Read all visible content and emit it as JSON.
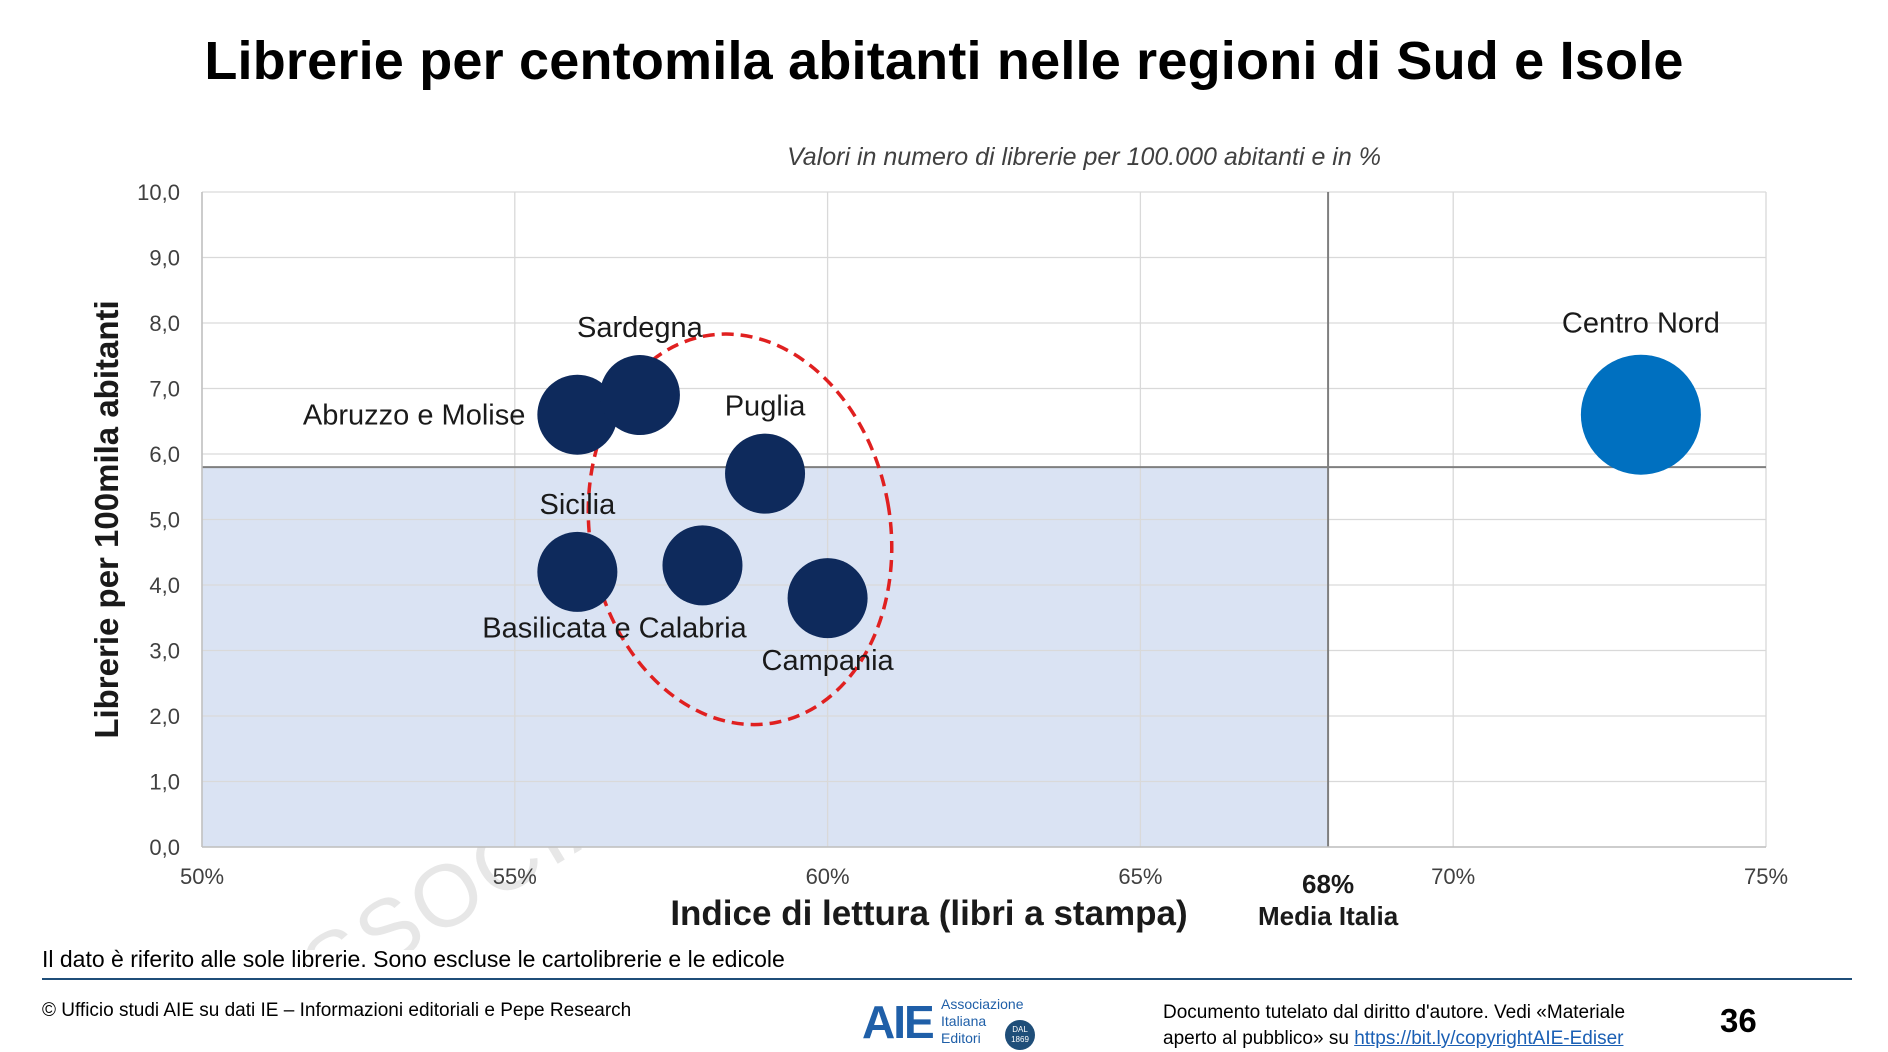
{
  "title": "Librerie per centomila abitanti nelle regioni di Sud e Isole",
  "note": "Il dato è riferito alle sole librerie. Sono escluse le cartolibrerie e le edicole",
  "footer": {
    "source": "© Ufficio studi AIE su dati IE – Informazioni editoriali e Pepe Research",
    "logo": {
      "mark": "AIE",
      "line1": "Associazione",
      "line2": "Italiana",
      "line3": "Editori",
      "seal_top": "DAL",
      "seal_bottom": "1869"
    },
    "copyright_line1": "Documento tutelato dal diritto d'autore. Vedi «Materiale",
    "copyright_line2_prefix": "aperto al pubblico» su ",
    "copyright_link": "https://bit.ly/copyrightAIE-Ediser",
    "page_number": "36"
  },
  "watermark": "ASSOCIAZIONE ITALIANA EDITORI",
  "chart_data": {
    "type": "scatter",
    "subtitle": "Valori in numero di librerie per 100.000 abitanti e in %",
    "xlabel": "Indice di lettura (libri a stampa)",
    "ylabel": "Librerie per 100mila abitanti",
    "xlim": [
      50,
      75
    ],
    "ylim": [
      0,
      10
    ],
    "x_ticks": [
      {
        "value": 50,
        "label": "50%"
      },
      {
        "value": 55,
        "label": "55%"
      },
      {
        "value": 60,
        "label": "60%"
      },
      {
        "value": 65,
        "label": "65%"
      },
      {
        "value": 70,
        "label": "70%"
      },
      {
        "value": 75,
        "label": "75%"
      }
    ],
    "y_ticks": [
      {
        "value": 0,
        "label": "0,0"
      },
      {
        "value": 1,
        "label": "1,0"
      },
      {
        "value": 2,
        "label": "2,0"
      },
      {
        "value": 3,
        "label": "3,0"
      },
      {
        "value": 4,
        "label": "4,0"
      },
      {
        "value": 5,
        "label": "5,0"
      },
      {
        "value": 6,
        "label": "6,0"
      },
      {
        "value": 7,
        "label": "7,0"
      },
      {
        "value": 8,
        "label": "8,0"
      },
      {
        "value": 9,
        "label": "9,0"
      },
      {
        "value": 10,
        "label": "10,0"
      }
    ],
    "grid": true,
    "reference_x": {
      "value": 68,
      "label_value": "68%",
      "label_text": "Media Italia"
    },
    "reference_y": {
      "value": 5.8
    },
    "shaded_quadrant": {
      "x_max": 68,
      "y_max": 5.8,
      "color": "#dae3f3"
    },
    "points": [
      {
        "name": "Abruzzo e Molise",
        "x": 56,
        "y": 6.6,
        "color": "#0e2a5c",
        "label_pos": "left"
      },
      {
        "name": "Sardegna",
        "x": 57,
        "y": 6.9,
        "color": "#0e2a5c",
        "label_pos": "above"
      },
      {
        "name": "Puglia",
        "x": 59,
        "y": 5.7,
        "color": "#0e2a5c",
        "label_pos": "above"
      },
      {
        "name": "Sicilia",
        "x": 56,
        "y": 4.2,
        "color": "#0e2a5c",
        "label_pos": "above"
      },
      {
        "name": "Basilicata e Calabria",
        "x": 58,
        "y": 4.3,
        "color": "#0e2a5c",
        "label_pos": "below-left"
      },
      {
        "name": "Campania",
        "x": 60,
        "y": 3.8,
        "color": "#0e2a5c",
        "label_pos": "below"
      },
      {
        "name": "Centro Nord",
        "x": 73,
        "y": 6.6,
        "color": "#0070c0",
        "label_pos": "above",
        "large": true
      }
    ],
    "highlight_ellipse": {
      "cx": 58.6,
      "cy": 4.85,
      "rx": 2.4,
      "ry": 3.0,
      "color": "#e02020"
    }
  }
}
